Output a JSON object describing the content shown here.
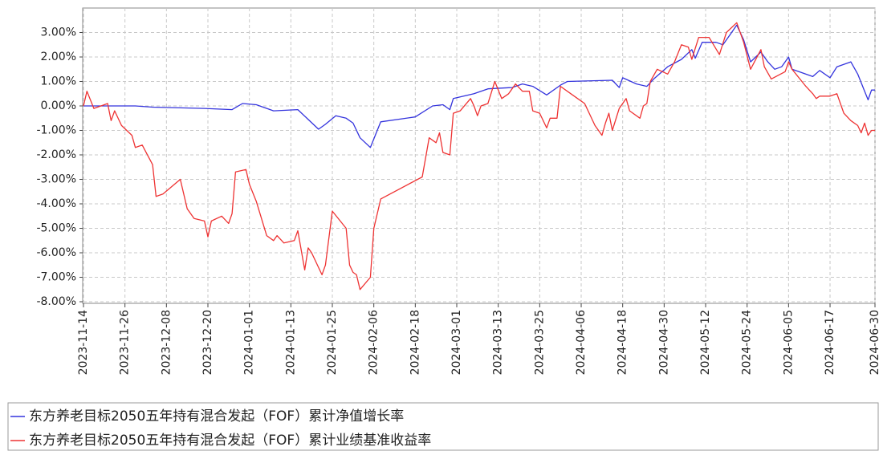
{
  "chart_data": {
    "type": "line",
    "xlim": [
      "2023-11-14",
      "2024-06-30"
    ],
    "xticks": [
      "2023-11-14",
      "2023-11-26",
      "2023-12-08",
      "2023-12-20",
      "2024-01-01",
      "2024-01-13",
      "2024-01-25",
      "2024-02-06",
      "2024-02-18",
      "2024-03-01",
      "2024-03-13",
      "2024-03-25",
      "2024-04-06",
      "2024-04-18",
      "2024-04-30",
      "2024-05-12",
      "2024-05-24",
      "2024-06-05",
      "2024-06-17",
      "2024-06-30"
    ],
    "ylim": [
      -8,
      4
    ],
    "yticks": [
      {
        "value": 3,
        "label": "3.00%"
      },
      {
        "value": 2,
        "label": "2.00%"
      },
      {
        "value": 1,
        "label": "1.00%"
      },
      {
        "value": 0,
        "label": "0.00%"
      },
      {
        "value": -1,
        "label": "-1.00%"
      },
      {
        "value": -2,
        "label": "-2.00%"
      },
      {
        "value": -3,
        "label": "-3.00%"
      },
      {
        "value": -4,
        "label": "-4.00%"
      },
      {
        "value": -5,
        "label": "-5.00%"
      },
      {
        "value": -6,
        "label": "-6.00%"
      },
      {
        "value": -7,
        "label": "-7.00%"
      },
      {
        "value": -8,
        "label": "-8.00%"
      }
    ],
    "grid": true,
    "legend": "bottom",
    "series": [
      {
        "name": "东方养老目标2050五年持有混合发起（FOF）累计净值增长率",
        "color": "#3333dd",
        "x": [
          "2023-11-14",
          "2023-11-29",
          "2023-12-04",
          "2023-12-19",
          "2023-12-27",
          "2023-12-30",
          "2024-01-03",
          "2024-01-08",
          "2024-01-15",
          "2024-01-21",
          "2024-01-23",
          "2024-01-26",
          "2024-01-29",
          "2024-01-31",
          "2024-02-02",
          "2024-02-05",
          "2024-02-08",
          "2024-02-18",
          "2024-02-23",
          "2024-02-26",
          "2024-02-28",
          "2024-02-29",
          "2024-03-06",
          "2024-03-10",
          "2024-03-17",
          "2024-03-20",
          "2024-03-23",
          "2024-03-27",
          "2024-03-31",
          "2024-04-02",
          "2024-04-15",
          "2024-04-17",
          "2024-04-18",
          "2024-04-22",
          "2024-04-25",
          "2024-04-27",
          "2024-05-01",
          "2024-05-05",
          "2024-05-08",
          "2024-05-09",
          "2024-05-11",
          "2024-05-15",
          "2024-05-17",
          "2024-05-19",
          "2024-05-21",
          "2024-05-23",
          "2024-05-25",
          "2024-05-28",
          "2024-05-30",
          "2024-06-01",
          "2024-06-03",
          "2024-06-05",
          "2024-06-06",
          "2024-06-12",
          "2024-06-14",
          "2024-06-17",
          "2024-06-19",
          "2024-06-23",
          "2024-06-25",
          "2024-06-27",
          "2024-06-28",
          "2024-06-29",
          "2024-06-30"
        ],
        "values": [
          0,
          0,
          -0.05,
          -0.1,
          -0.15,
          0.1,
          0.05,
          -0.2,
          -0.15,
          -0.95,
          -0.75,
          -0.4,
          -0.5,
          -0.7,
          -1.3,
          -1.7,
          -0.65,
          -0.45,
          0,
          0.05,
          -0.15,
          0.3,
          0.5,
          0.7,
          0.75,
          0.9,
          0.8,
          0.45,
          0.85,
          1.0,
          1.05,
          0.75,
          1.15,
          0.9,
          0.8,
          1.1,
          1.6,
          1.9,
          2.3,
          1.95,
          2.6,
          2.6,
          2.5,
          2.9,
          3.3,
          2.7,
          1.8,
          2.2,
          1.8,
          1.5,
          1.6,
          2.0,
          1.5,
          1.2,
          1.45,
          1.15,
          1.6,
          1.8,
          1.3,
          0.6,
          0.25,
          0.65,
          0.65
        ]
      },
      {
        "name": "东方养老目标2050五年持有混合发起（FOF）累计业绩基准收益率",
        "color": "#ee3333",
        "x": [
          "2023-11-14",
          "2023-11-15",
          "2023-11-17",
          "2023-11-21",
          "2023-11-22",
          "2023-11-23",
          "2023-11-25",
          "2023-11-28",
          "2023-11-29",
          "2023-12-01",
          "2023-12-04",
          "2023-12-05",
          "2023-12-07",
          "2023-12-12",
          "2023-12-14",
          "2023-12-16",
          "2023-12-19",
          "2023-12-20",
          "2023-12-21",
          "2023-12-24",
          "2023-12-26",
          "2023-12-27",
          "2023-12-28",
          "2023-12-31",
          "2024-01-01",
          "2024-01-03",
          "2024-01-06",
          "2024-01-08",
          "2024-01-09",
          "2024-01-11",
          "2024-01-14",
          "2024-01-15",
          "2024-01-17",
          "2024-01-18",
          "2024-01-19",
          "2024-01-22",
          "2024-01-23",
          "2024-01-25",
          "2024-01-29",
          "2024-01-30",
          "2024-01-31",
          "2024-02-01",
          "2024-02-02",
          "2024-02-05",
          "2024-02-06",
          "2024-02-08",
          "2024-02-20",
          "2024-02-22",
          "2024-02-24",
          "2024-02-25",
          "2024-02-26",
          "2024-02-28",
          "2024-02-29",
          "2024-03-02",
          "2024-03-05",
          "2024-03-06",
          "2024-03-07",
          "2024-03-08",
          "2024-03-10",
          "2024-03-12",
          "2024-03-14",
          "2024-03-16",
          "2024-03-18",
          "2024-03-20",
          "2024-03-22",
          "2024-03-23",
          "2024-03-25",
          "2024-03-27",
          "2024-03-28",
          "2024-03-30",
          "2024-03-31",
          "2024-04-03",
          "2024-04-07",
          "2024-04-10",
          "2024-04-12",
          "2024-04-13",
          "2024-04-14",
          "2024-04-15",
          "2024-04-17",
          "2024-04-19",
          "2024-04-20",
          "2024-04-23",
          "2024-04-24",
          "2024-04-25",
          "2024-04-26",
          "2024-04-28",
          "2024-05-01",
          "2024-05-03",
          "2024-05-05",
          "2024-05-07",
          "2024-05-08",
          "2024-05-10",
          "2024-05-13",
          "2024-05-16",
          "2024-05-18",
          "2024-05-21",
          "2024-05-23",
          "2024-05-25",
          "2024-05-28",
          "2024-05-29",
          "2024-05-31",
          "2024-06-04",
          "2024-06-05",
          "2024-06-06",
          "2024-06-10",
          "2024-06-12",
          "2024-06-13",
          "2024-06-14",
          "2024-06-17",
          "2024-06-19",
          "2024-06-21",
          "2024-06-23",
          "2024-06-25",
          "2024-06-26",
          "2024-06-27",
          "2024-06-28",
          "2024-06-29",
          "2024-06-30"
        ],
        "values": [
          0,
          0.6,
          -0.1,
          0.1,
          -0.6,
          -0.2,
          -0.8,
          -1.2,
          -1.7,
          -1.6,
          -2.4,
          -3.7,
          -3.6,
          -3.0,
          -4.2,
          -4.6,
          -4.7,
          -5.35,
          -4.7,
          -4.5,
          -4.8,
          -4.4,
          -2.7,
          -2.6,
          -3.2,
          -3.9,
          -5.3,
          -5.5,
          -5.3,
          -5.6,
          -5.5,
          -5.1,
          -6.7,
          -5.8,
          -6.0,
          -6.9,
          -6.5,
          -4.3,
          -5.0,
          -6.5,
          -6.8,
          -6.9,
          -7.5,
          -7.0,
          -5.0,
          -3.8,
          -2.9,
          -1.3,
          -1.5,
          -1.1,
          -1.9,
          -2.0,
          -0.3,
          -0.2,
          0.3,
          0,
          -0.4,
          0,
          0.1,
          1.0,
          0.3,
          0.5,
          0.9,
          0.6,
          0.6,
          -0.2,
          -0.3,
          -0.9,
          -0.5,
          -0.5,
          0.8,
          0.5,
          0.1,
          -0.8,
          -1.2,
          -0.7,
          -0.3,
          -1.0,
          -0.1,
          0.3,
          -0.2,
          -0.5,
          0,
          0.1,
          1.0,
          1.5,
          1.3,
          1.8,
          2.5,
          2.4,
          1.9,
          2.8,
          2.8,
          2.1,
          3.0,
          3.4,
          2.6,
          1.5,
          2.3,
          1.6,
          1.1,
          1.4,
          1.8,
          1.5,
          0.8,
          0.5,
          0.3,
          0.4,
          0.4,
          0.5,
          -0.3,
          -0.6,
          -0.8,
          -1.1,
          -0.7,
          -1.2,
          -1.0,
          -1.0
        ]
      }
    ]
  }
}
